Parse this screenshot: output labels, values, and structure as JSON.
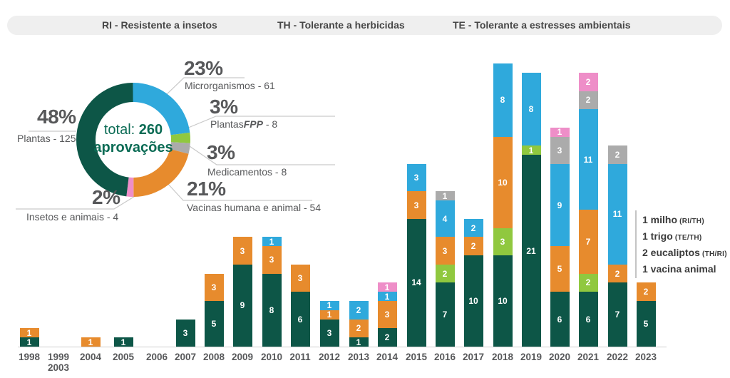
{
  "legend": {
    "items": [
      "RI - Resistente a insetos",
      "TH - Tolerante a herbicidas",
      "TE - Tolerante a estresses ambientais"
    ]
  },
  "donut": {
    "center": {
      "prefix": "total: ",
      "total": "260",
      "line2": "aprovações"
    },
    "labels": {
      "plantas": {
        "pct": "48%",
        "text": "Plantas - 125"
      },
      "microrganismos": {
        "pct": "23%",
        "text": "Microrganismos - 61"
      },
      "plantasfpp": {
        "pct": "3%",
        "prefix": "Plantas",
        "italic": "FPP",
        "suffix": " - 8"
      },
      "medicamentos": {
        "pct": "3%",
        "text": "Medicamentos - 8"
      },
      "vacinas": {
        "pct": "21%",
        "text": "Vacinas humana e animal - 54"
      },
      "insetos": {
        "pct": "2%",
        "text": "Insetos e animais - 4"
      }
    }
  },
  "annotation": {
    "lines": [
      {
        "text": "1 milho",
        "tag": "(RI/TH)"
      },
      {
        "text": "1 trigo",
        "tag": "(TE/TH)"
      },
      {
        "text": "2 eucaliptos",
        "tag": "(TH/RI)"
      },
      {
        "text": "1 vacina animal",
        "tag": ""
      }
    ]
  },
  "colors": {
    "plantas": "#0D5647",
    "plantasfpp": "#90C83F",
    "vacinas": "#E78B2D",
    "microrganismos": "#2FA9DC",
    "medicamentos": "#ABABAB",
    "insetos": "#EE8EC8",
    "center_text": "#0A6B54"
  },
  "chart_data": [
    {
      "type": "pie",
      "subtype": "donut",
      "center_label": "total: 260 aprovações",
      "total": 260,
      "slices": [
        {
          "label": "Microrganismos",
          "value": 61,
          "pct": 23,
          "color": "#2FA9DC"
        },
        {
          "label": "PlantasFPP",
          "value": 8,
          "pct": 3,
          "color": "#90C83F"
        },
        {
          "label": "Medicamentos",
          "value": 8,
          "pct": 3,
          "color": "#ABABAB"
        },
        {
          "label": "Vacinas humana e animal",
          "value": 54,
          "pct": 21,
          "color": "#E78B2D"
        },
        {
          "label": "Insetos e animais",
          "value": 4,
          "pct": 2,
          "color": "#EE8EC8"
        },
        {
          "label": "Plantas",
          "value": 125,
          "pct": 48,
          "color": "#0D5647"
        }
      ]
    },
    {
      "type": "bar",
      "stacked": true,
      "value_labels": true,
      "ylim": [
        0,
        31
      ],
      "categories": [
        "1998",
        "1999\n2003",
        "2004",
        "2005",
        "2006",
        "2007",
        "2008",
        "2009",
        "2010",
        "2011",
        "2012",
        "2013",
        "2014",
        "2015",
        "2016",
        "2017",
        "2018",
        "2019",
        "2020",
        "2021",
        "2022",
        "2023"
      ],
      "series": [
        {
          "name": "Plantas",
          "color": "#0D5647",
          "values": [
            1,
            0,
            0,
            1,
            0,
            3,
            5,
            9,
            8,
            6,
            3,
            1,
            2,
            14,
            7,
            10,
            10,
            21,
            6,
            6,
            7,
            5
          ]
        },
        {
          "name": "PlantasFPP",
          "color": "#90C83F",
          "values": [
            0,
            0,
            0,
            0,
            0,
            0,
            0,
            0,
            0,
            0,
            0,
            0,
            0,
            0,
            2,
            0,
            3,
            1,
            0,
            2,
            0,
            0
          ]
        },
        {
          "name": "Vacinas humana e animal",
          "color": "#E78B2D",
          "values": [
            1,
            0,
            1,
            0,
            0,
            0,
            3,
            3,
            3,
            3,
            1,
            2,
            3,
            3,
            3,
            2,
            10,
            0,
            5,
            7,
            2,
            2
          ]
        },
        {
          "name": "Microrganismos",
          "color": "#2FA9DC",
          "values": [
            0,
            0,
            0,
            0,
            0,
            0,
            0,
            0,
            1,
            0,
            1,
            2,
            1,
            3,
            4,
            2,
            8,
            8,
            9,
            11,
            11,
            0
          ]
        },
        {
          "name": "Medicamentos",
          "color": "#ABABAB",
          "values": [
            0,
            0,
            0,
            0,
            0,
            0,
            0,
            0,
            0,
            0,
            0,
            0,
            0,
            0,
            1,
            0,
            0,
            0,
            3,
            2,
            2,
            0
          ]
        },
        {
          "name": "Insetos e animais",
          "color": "#EE8EC8",
          "values": [
            0,
            0,
            0,
            0,
            0,
            0,
            0,
            0,
            0,
            0,
            0,
            0,
            1,
            0,
            0,
            0,
            0,
            0,
            1,
            2,
            0,
            0
          ]
        }
      ]
    }
  ]
}
